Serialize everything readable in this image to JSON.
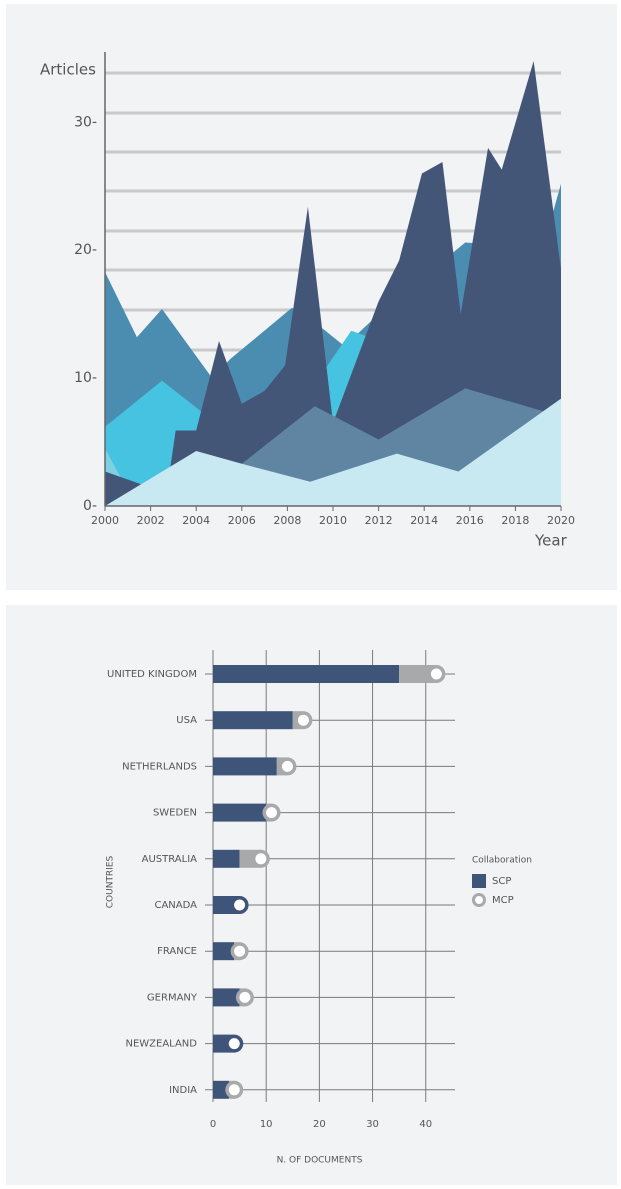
{
  "chart_data": [
    {
      "type": "area",
      "y_label": "Articles",
      "x_label": "Year",
      "xlim": [
        2000,
        2020
      ],
      "xticks": [
        2000,
        2002,
        2004,
        2006,
        2008,
        2010,
        2012,
        2014,
        2016,
        2018,
        2020
      ],
      "ylim": [
        0,
        35.5
      ],
      "yticks": [
        {
          "value": 0,
          "label": "0-"
        },
        {
          "value": 10,
          "label": "10-"
        },
        {
          "value": 20,
          "label": "20-"
        },
        {
          "value": 30,
          "label": "30-"
        }
      ],
      "series": [
        {
          "color": "#4a8db0",
          "x": [
            2000,
            2001.4,
            2002.5,
            2004.7,
            2005.5,
            2008.2,
            2009.6,
            2010.5,
            2012,
            2015.8,
            2016.7,
            2019.5,
            2020
          ],
          "values": [
            18.3,
            13.2,
            15.4,
            10,
            11.5,
            15.5,
            13.8,
            12.5,
            15,
            20.6,
            20.5,
            22,
            25.2
          ]
        },
        {
          "color": "#45c3e0",
          "x": [
            2000,
            2002.5,
            2004.5,
            2009,
            2010.8,
            2011.6,
            2012.5
          ],
          "values": [
            6.2,
            9.8,
            7,
            9,
            13.7,
            13.2,
            5
          ]
        },
        {
          "color": "#7fd0e5",
          "x": [
            2000,
            2001,
            2002,
            2004
          ],
          "values": [
            4.5,
            1.2,
            1,
            3.5
          ]
        },
        {
          "color": "#435678",
          "x": [
            2000,
            2002.7,
            2003.1,
            2004,
            2005,
            2006,
            2007,
            2007.9,
            2008.9,
            2010,
            2012,
            2012.9,
            2013.9,
            2014.8,
            2015.6,
            2016.8,
            2017.4,
            2018.8,
            2020
          ],
          "values": [
            2.7,
            1,
            5.9,
            5.9,
            12.9,
            8,
            9,
            11,
            23.4,
            6.5,
            16,
            19.2,
            26,
            26.9,
            15,
            28,
            26.3,
            34.8,
            18.5
          ]
        },
        {
          "color": "#5f85a2",
          "x": [
            2000,
            2006,
            2009.2,
            2012,
            2015.8,
            2020
          ],
          "values": [
            0,
            3.3,
            7.8,
            5.2,
            9.2,
            7
          ]
        },
        {
          "color": "#c8e8f2",
          "x": [
            2000,
            2004,
            2006,
            2009,
            2012.8,
            2015.5,
            2020
          ],
          "values": [
            0,
            4.3,
            3.3,
            1.9,
            4.1,
            2.7,
            8.4
          ]
        }
      ]
    },
    {
      "type": "bar",
      "orientation": "horizontal",
      "stacked": true,
      "x_label": "N. OF DOCUMENTS",
      "y_label": "COUNTRIES",
      "legend_title": "Collaboration",
      "categories": [
        "UNITED KINGDOM",
        "USA",
        "NETHERLANDS",
        "SWEDEN",
        "AUSTRALIA",
        "CANADA",
        "FRANCE",
        "GERMANY",
        "NEWZEALAND",
        "INDIA"
      ],
      "xlim": [
        0,
        45.5
      ],
      "xticks": [
        0,
        10,
        20,
        30,
        40
      ],
      "grid": true,
      "series": [
        {
          "name": "SCP",
          "color": "#3f5479",
          "values": [
            35,
            15,
            12,
            10,
            5,
            5,
            4,
            5,
            4,
            3
          ]
        },
        {
          "name": "MCP",
          "color": "#a8a9ab",
          "values": [
            7,
            2,
            2,
            1,
            4,
            0,
            1,
            1,
            0,
            1
          ]
        }
      ]
    }
  ]
}
